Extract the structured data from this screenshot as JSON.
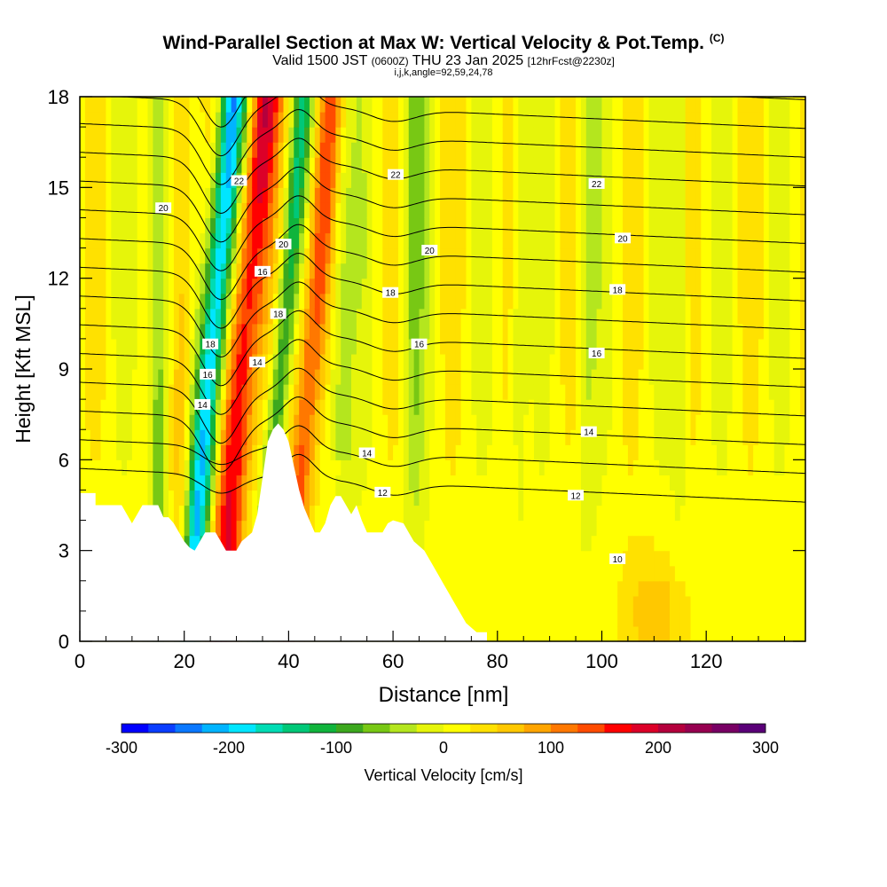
{
  "header": {
    "title": "Wind-Parallel Section at Max W: Vertical Velocity & Pot.Temp.",
    "title_mark": "(C)",
    "subtitle_main": "Valid 1500 JST",
    "subtitle_z": "(0600Z)",
    "subtitle_date": "THU 23 Jan 2025",
    "subtitle_fcst": "[12hrFcst@2230z]",
    "subtitle2": "i,j,k,angle=92,59,24,78"
  },
  "chart_data": {
    "type": "heatmap",
    "xlabel": "Distance [nm]",
    "ylabel": "Height [Kft MSL]",
    "xlim": [
      0,
      139
    ],
    "ylim": [
      0,
      18
    ],
    "x_ticks": [
      0,
      20,
      40,
      60,
      80,
      100,
      120
    ],
    "y_ticks": [
      0,
      3,
      6,
      9,
      12,
      15,
      18
    ],
    "colorbar": {
      "label": "Vertical Velocity [cm/s]",
      "ticks": [
        -300,
        -200,
        -100,
        0,
        100,
        200,
        300
      ],
      "colors": [
        "#0000ff",
        "#0a3dff",
        "#0a78ff",
        "#00b4ff",
        "#00e6ff",
        "#00dcb4",
        "#00c878",
        "#10b43c",
        "#3ca81e",
        "#78c814",
        "#b4e61e",
        "#e6f50a",
        "#ffff00",
        "#ffe100",
        "#ffc800",
        "#ffa500",
        "#ff7800",
        "#ff4b00",
        "#ff0000",
        "#dc0028",
        "#b4003c",
        "#960050",
        "#780064",
        "#5a0078"
      ]
    },
    "contour_field": "Potential temperature (C)",
    "contour_labels": [
      {
        "x": 16,
        "y": 14.3,
        "text": "20"
      },
      {
        "x": 30.5,
        "y": 15.2,
        "text": "22"
      },
      {
        "x": 35,
        "y": 12.2,
        "text": "16"
      },
      {
        "x": 39,
        "y": 13.1,
        "text": "20"
      },
      {
        "x": 38,
        "y": 10.8,
        "text": "18"
      },
      {
        "x": 25,
        "y": 9.8,
        "text": "18"
      },
      {
        "x": 24.5,
        "y": 8.8,
        "text": "16"
      },
      {
        "x": 23.5,
        "y": 7.8,
        "text": "14"
      },
      {
        "x": 34,
        "y": 9.2,
        "text": "14"
      },
      {
        "x": 60.5,
        "y": 15.4,
        "text": "22"
      },
      {
        "x": 67,
        "y": 12.9,
        "text": "20"
      },
      {
        "x": 59.5,
        "y": 11.5,
        "text": "18"
      },
      {
        "x": 65,
        "y": 9.8,
        "text": "16"
      },
      {
        "x": 99,
        "y": 15.1,
        "text": "22"
      },
      {
        "x": 104,
        "y": 13.3,
        "text": "20"
      },
      {
        "x": 103,
        "y": 11.6,
        "text": "18"
      },
      {
        "x": 99,
        "y": 9.5,
        "text": "16"
      },
      {
        "x": 97.5,
        "y": 6.9,
        "text": "14"
      },
      {
        "x": 55,
        "y": 6.2,
        "text": "14"
      },
      {
        "x": 58,
        "y": 4.9,
        "text": "12"
      },
      {
        "x": 95,
        "y": 4.8,
        "text": "12"
      },
      {
        "x": 103,
        "y": 2.7,
        "text": "10"
      }
    ],
    "terrain": [
      [
        0,
        4.9
      ],
      [
        3,
        4.9
      ],
      [
        3,
        4.5
      ],
      [
        8,
        4.5
      ],
      [
        9,
        4.2
      ],
      [
        10,
        3.9
      ],
      [
        11,
        4.2
      ],
      [
        12,
        4.5
      ],
      [
        15,
        4.5
      ],
      [
        16,
        4.1
      ],
      [
        17,
        4.1
      ],
      [
        18,
        3.9
      ],
      [
        19,
        3.6
      ],
      [
        20,
        3.3
      ],
      [
        21,
        3.1
      ],
      [
        22,
        3.0
      ],
      [
        23,
        3.3
      ],
      [
        24,
        3.6
      ],
      [
        26,
        3.6
      ],
      [
        27,
        3.3
      ],
      [
        28,
        3.0
      ],
      [
        30,
        3.0
      ],
      [
        31,
        3.3
      ],
      [
        33,
        3.6
      ],
      [
        34,
        4.2
      ],
      [
        35,
        5.4
      ],
      [
        36,
        6.6
      ],
      [
        37,
        7.0
      ],
      [
        38,
        7.2
      ],
      [
        39,
        7.0
      ],
      [
        40,
        6.6
      ],
      [
        41,
        5.8
      ],
      [
        42,
        5.0
      ],
      [
        43,
        4.4
      ],
      [
        44,
        4.0
      ],
      [
        45,
        3.6
      ],
      [
        46,
        3.6
      ],
      [
        47,
        3.9
      ],
      [
        48,
        4.5
      ],
      [
        49,
        4.8
      ],
      [
        50,
        4.8
      ],
      [
        51,
        4.5
      ],
      [
        52,
        4.2
      ],
      [
        53,
        4.5
      ],
      [
        54,
        4.0
      ],
      [
        55,
        3.6
      ],
      [
        58,
        3.6
      ],
      [
        59,
        3.9
      ],
      [
        60,
        4.0
      ],
      [
        62,
        3.9
      ],
      [
        63,
        3.6
      ],
      [
        64,
        3.3
      ],
      [
        66,
        3.0
      ],
      [
        68,
        2.4
      ],
      [
        70,
        1.8
      ],
      [
        72,
        1.2
      ],
      [
        74,
        0.6
      ],
      [
        76,
        0.3
      ],
      [
        77,
        0.3
      ],
      [
        78,
        0.3
      ]
    ]
  }
}
